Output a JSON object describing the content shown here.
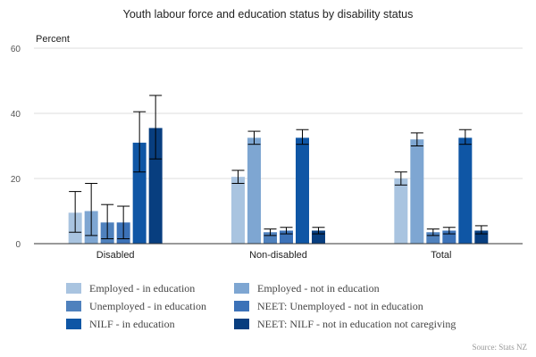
{
  "chart_data": {
    "type": "bar",
    "title": "Youth labour force and education status by disability status",
    "ylabel": "Percent",
    "ylim": [
      0,
      60
    ],
    "yticks": [
      0,
      20,
      40,
      60
    ],
    "grid": true,
    "legend_position": "bottom",
    "categories": [
      "Disabled",
      "Non-disabled",
      "Total"
    ],
    "series": [
      {
        "name": "Employed - in education",
        "color": "#a9c4e0",
        "values": [
          9.5,
          20.5,
          20.0
        ],
        "error_low": [
          3.5,
          18.5,
          18.0
        ],
        "error_high": [
          16.0,
          22.5,
          22.0
        ]
      },
      {
        "name": "Employed - not in education",
        "color": "#7ea6d2",
        "values": [
          10.0,
          32.5,
          32.0
        ],
        "error_low": [
          2.5,
          30.5,
          30.0
        ],
        "error_high": [
          18.5,
          34.5,
          34.0
        ]
      },
      {
        "name": "Unemployed - in education",
        "color": "#4f81bd",
        "values": [
          6.5,
          3.5,
          3.5
        ],
        "error_low": [
          1.5,
          2.5,
          2.5
        ],
        "error_high": [
          12.0,
          4.5,
          4.5
        ]
      },
      {
        "name": "NEET: Unemployed - not in education",
        "color": "#3c72b8",
        "values": [
          6.5,
          4.0,
          4.0
        ],
        "error_low": [
          1.5,
          3.0,
          3.0
        ],
        "error_high": [
          11.5,
          5.0,
          5.0
        ]
      },
      {
        "name": "NILF - in education",
        "color": "#0f56a5",
        "values": [
          31.0,
          32.5,
          32.5
        ],
        "error_low": [
          22.0,
          30.5,
          30.5
        ],
        "error_high": [
          40.5,
          35.0,
          35.0
        ]
      },
      {
        "name": "NEET: NILF - not in education not caregiving",
        "color": "#083e7f",
        "values": [
          35.5,
          4.0,
          4.0
        ],
        "error_low": [
          26.0,
          3.0,
          3.0
        ],
        "error_high": [
          45.5,
          5.0,
          5.5
        ]
      }
    ]
  },
  "source": "Source: Stats NZ"
}
